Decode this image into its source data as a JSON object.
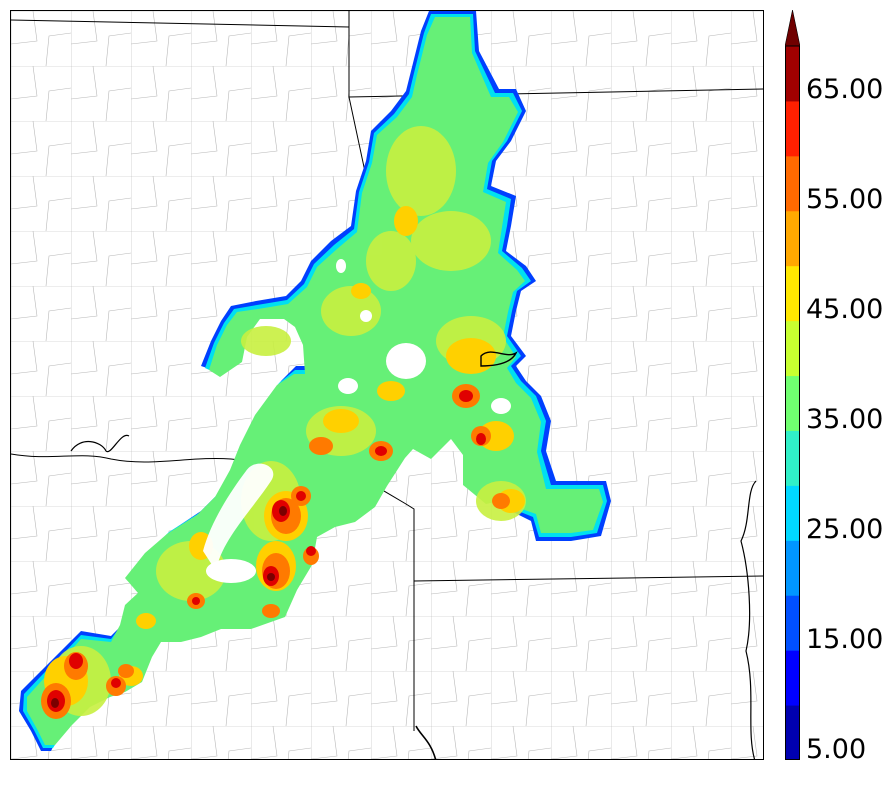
{
  "colorbar": {
    "labels": [
      "5.00",
      "15.00",
      "25.00",
      "35.00",
      "45.00",
      "55.00",
      "65.00"
    ],
    "colors": [
      "#0000b0",
      "#0000ff",
      "#0050ff",
      "#0096ff",
      "#00d8ff",
      "#30f0c8",
      "#70ff70",
      "#c8ff30",
      "#ffe800",
      "#ffa800",
      "#ff6a00",
      "#ff2000",
      "#a00000",
      "#700000"
    ],
    "extend": "max"
  }
}
